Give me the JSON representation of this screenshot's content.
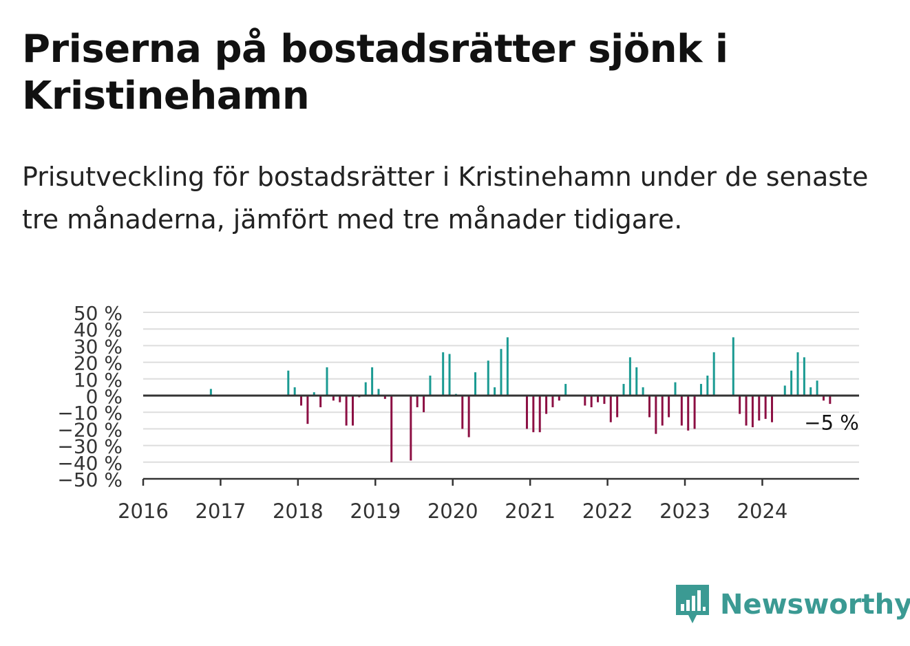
{
  "title": "Priserna på bostadsrätter sjönk i Kristinehamn",
  "subtitle": "Prisutveckling för bostadsrätter i Kristinehamn under de senaste tre månaderna, jämfört med tre månader tidigare.",
  "logo_text": "Newsworthy",
  "colors": {
    "positive": "#1a9a92",
    "negative": "#8c0f43",
    "grid": "#dddddd",
    "axis": "#333333"
  },
  "chart_data": {
    "type": "bar",
    "title": "",
    "xlabel": "",
    "ylabel": "",
    "ylim": [
      -50,
      50
    ],
    "y_ticks": [
      50,
      40,
      30,
      20,
      10,
      0,
      -10,
      -20,
      -30,
      -40,
      -50
    ],
    "y_tick_labels": [
      "50 %",
      "40 %",
      "30 %",
      "20 %",
      "10 %",
      "0 %",
      "−10 %",
      "−20 %",
      "−30 %",
      "−40 %",
      "−50 %"
    ],
    "x_tick_labels": [
      "2016",
      "2017",
      "2018",
      "2019",
      "2020",
      "2021",
      "2022",
      "2023",
      "2024"
    ],
    "x_range": [
      "2016-01",
      "2025-04"
    ],
    "grid": true,
    "last_value_label": "−5 %",
    "x": [
      "2016-11",
      "2017-11",
      "2017-12",
      "2018-01",
      "2018-02",
      "2018-03",
      "2018-04",
      "2018-05",
      "2018-06",
      "2018-07",
      "2018-08",
      "2018-09",
      "2018-10",
      "2018-11",
      "2018-12",
      "2019-01",
      "2019-02",
      "2019-03",
      "2019-06",
      "2019-07",
      "2019-08",
      "2019-09",
      "2019-11",
      "2019-12",
      "2020-01",
      "2020-02",
      "2020-03",
      "2020-04",
      "2020-06",
      "2020-07",
      "2020-08",
      "2020-09",
      "2020-12",
      "2021-01",
      "2021-02",
      "2021-03",
      "2021-04",
      "2021-05",
      "2021-06",
      "2021-07",
      "2021-09",
      "2021-10",
      "2021-11",
      "2021-12",
      "2022-01",
      "2022-02",
      "2022-03",
      "2022-04",
      "2022-05",
      "2022-06",
      "2022-07",
      "2022-08",
      "2022-09",
      "2022-10",
      "2022-11",
      "2022-12",
      "2023-01",
      "2023-02",
      "2023-03",
      "2023-04",
      "2023-05",
      "2023-08",
      "2023-09",
      "2023-10",
      "2023-11",
      "2023-12",
      "2024-01",
      "2024-02",
      "2024-04",
      "2024-05",
      "2024-06",
      "2024-07",
      "2024-08",
      "2024-09",
      "2024-10",
      "2024-11"
    ],
    "values": [
      4,
      15,
      5,
      -6,
      -17,
      2,
      -7,
      17,
      -3,
      -4,
      -18,
      -18,
      -1,
      8,
      17,
      4,
      -2,
      -40,
      -39,
      -7,
      -10,
      12,
      26,
      25,
      1,
      -20,
      -25,
      14,
      21,
      5,
      28,
      35,
      -20,
      -22,
      -22,
      -11,
      -7,
      -3,
      7,
      0,
      -6,
      -7,
      -4,
      -5,
      -16,
      -13,
      7,
      23,
      17,
      5,
      -13,
      -23,
      -18,
      -13,
      8,
      -18,
      -21,
      -20,
      7,
      12,
      26,
      35,
      -11,
      -18,
      -19,
      -15,
      -14,
      -16,
      6,
      15,
      26,
      23,
      5,
      9,
      -3,
      -5
    ]
  }
}
